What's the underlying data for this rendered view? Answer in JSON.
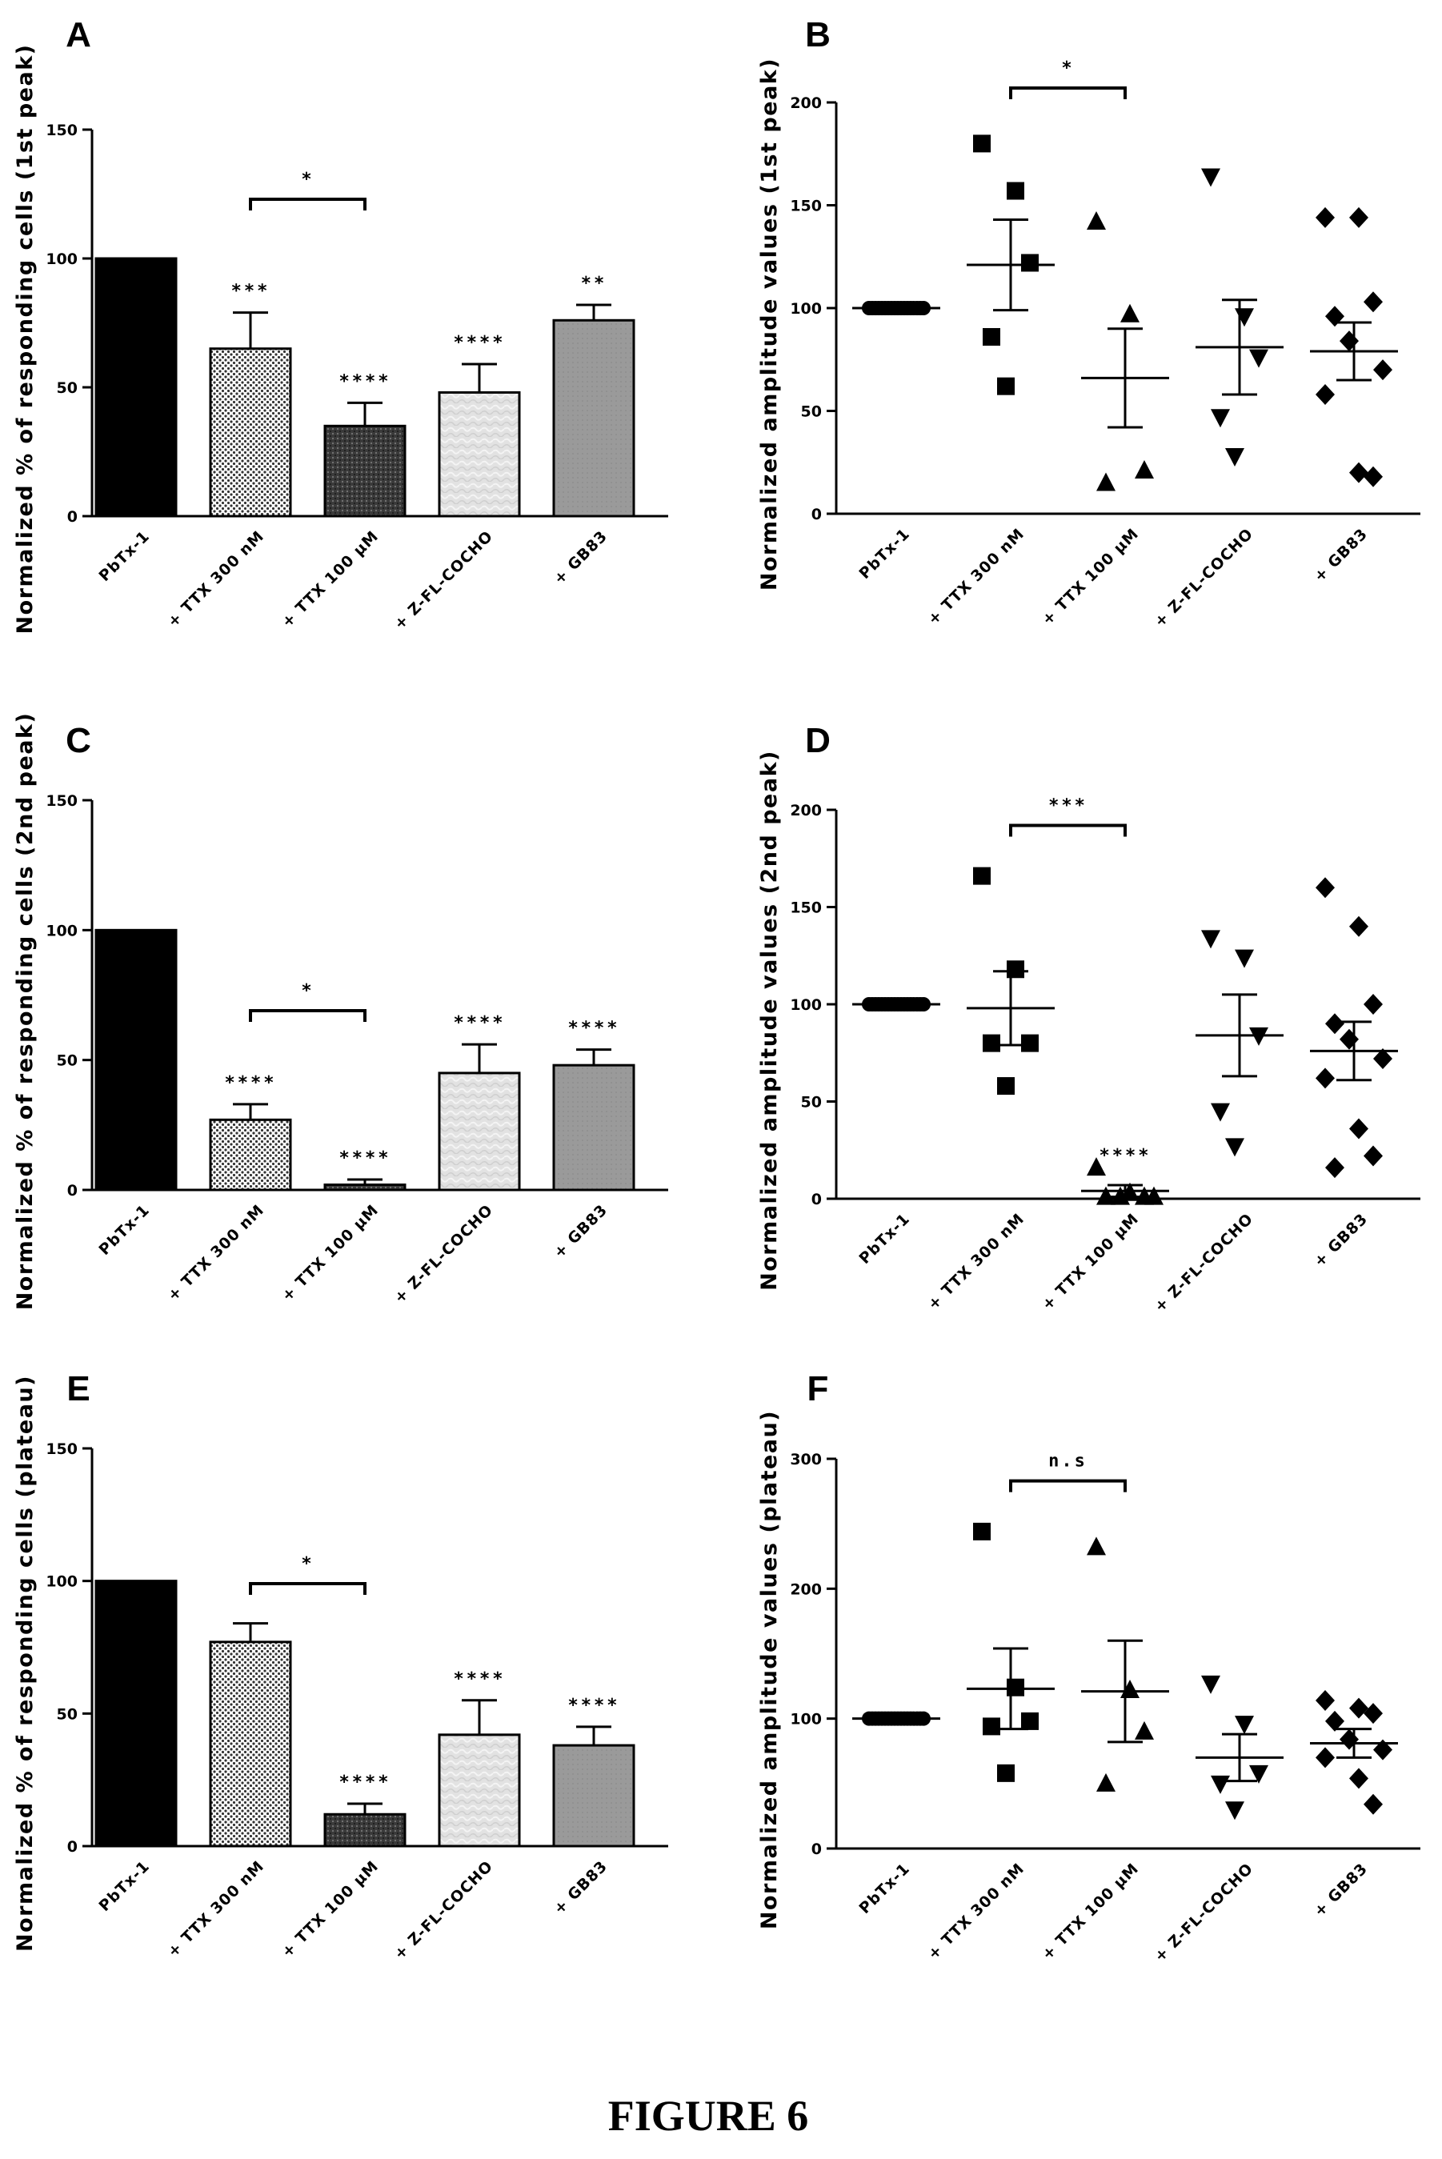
{
  "figure_title": "FIGURE 6",
  "chart_data": [
    {
      "panel": "A",
      "type": "bar",
      "ylabel": "Normalized % of responding cells (1st peak)",
      "ylim": [
        0,
        150
      ],
      "yticks": [
        0,
        50,
        100,
        150
      ],
      "categories": [
        "PbTx-1",
        "+ TTX 300 nM",
        "+ TTX 100 µM",
        "+ Z-FL-COCHO",
        "+ GB83"
      ],
      "values": [
        100,
        65,
        35,
        48,
        76
      ],
      "error": [
        0,
        14,
        9,
        11,
        6
      ],
      "significance": [
        "",
        "***",
        "****",
        "****",
        "**"
      ],
      "fills": [
        "solid",
        "dots",
        "dark",
        "light",
        "grey"
      ],
      "comparisons": [
        {
          "from": 1,
          "to": 2,
          "label": "*",
          "y": 123
        }
      ]
    },
    {
      "panel": "B",
      "type": "scatter",
      "ylabel": "Normalized amplitude values (1st peak)",
      "ylim": [
        0,
        200
      ],
      "yticks": [
        0,
        50,
        100,
        150,
        200
      ],
      "categories": [
        "PbTx-1",
        "+ TTX 300 nM",
        "+ TTX 100 µM",
        "+ Z-FL-COCHO",
        "+ GB83"
      ],
      "markers": [
        "circle",
        "square",
        "triangle",
        "triangle-down",
        "diamond"
      ],
      "points": [
        [
          100,
          100,
          100,
          100,
          100,
          100,
          100,
          100,
          100,
          100,
          100,
          100,
          100,
          100,
          100,
          100,
          100,
          100
        ],
        [
          180,
          157,
          122,
          86,
          62
        ],
        [
          142,
          97,
          21,
          15
        ],
        [
          164,
          96,
          76,
          47,
          28
        ],
        [
          144,
          144,
          103,
          96,
          84,
          70,
          58,
          20,
          18
        ]
      ],
      "mean": [
        100,
        121,
        66,
        81,
        79
      ],
      "sem": [
        0,
        22,
        24,
        23,
        14
      ],
      "significance": [
        "",
        "",
        "",
        "",
        ""
      ],
      "comparisons": [
        {
          "from": 1,
          "to": 2,
          "label": "*",
          "y": 207
        }
      ]
    },
    {
      "panel": "C",
      "type": "bar",
      "ylabel": "Normalized % of responding cells (2nd peak)",
      "ylim": [
        0,
        150
      ],
      "yticks": [
        0,
        50,
        100,
        150
      ],
      "categories": [
        "PbTx-1",
        "+ TTX 300 nM",
        "+ TTX 100 µM",
        "+ Z-FL-COCHO",
        "+ GB83"
      ],
      "values": [
        100,
        27,
        2,
        45,
        48
      ],
      "error": [
        0,
        6,
        2,
        11,
        6
      ],
      "significance": [
        "",
        "****",
        "****",
        "****",
        "****"
      ],
      "fills": [
        "solid",
        "dots",
        "dark",
        "light",
        "grey"
      ],
      "comparisons": [
        {
          "from": 1,
          "to": 2,
          "label": "*",
          "y": 69
        }
      ]
    },
    {
      "panel": "D",
      "type": "scatter",
      "ylabel": "Normalized amplitude values (2nd peak)",
      "ylim": [
        0,
        200
      ],
      "yticks": [
        0,
        50,
        100,
        150,
        200
      ],
      "categories": [
        "PbTx-1",
        "+ TTX 300 nM",
        "+ TTX 100 µM",
        "+ Z-FL-COCHO",
        "+ GB83"
      ],
      "markers": [
        "circle",
        "square",
        "triangle",
        "triangle-down",
        "diamond"
      ],
      "points": [
        [
          100,
          100,
          100,
          100,
          100,
          100,
          100,
          100,
          100,
          100,
          100,
          100,
          100,
          100,
          100,
          100,
          100,
          100
        ],
        [
          166,
          118,
          80,
          80,
          58
        ],
        [
          16,
          3,
          1,
          1,
          1,
          1
        ],
        [
          134,
          124,
          84,
          45,
          27
        ],
        [
          160,
          140,
          100,
          90,
          82,
          72,
          62,
          36,
          22,
          16
        ]
      ],
      "mean": [
        100,
        98,
        4,
        84,
        76
      ],
      "sem": [
        0,
        19,
        3,
        21,
        15
      ],
      "significance": [
        "",
        "",
        "****",
        "",
        ""
      ],
      "comparisons": [
        {
          "from": 1,
          "to": 2,
          "label": "***",
          "y": 192
        }
      ]
    },
    {
      "panel": "E",
      "type": "bar",
      "ylabel": "Normalized % of responding cells (plateau)",
      "ylim": [
        0,
        150
      ],
      "yticks": [
        0,
        50,
        100,
        150
      ],
      "categories": [
        "PbTx-1",
        "+ TTX 300 nM",
        "+ TTX 100 µM",
        "+ Z-FL-COCHO",
        "+ GB83"
      ],
      "values": [
        100,
        77,
        12,
        42,
        38
      ],
      "error": [
        0,
        7,
        4,
        13,
        7
      ],
      "significance": [
        "",
        "",
        "****",
        "****",
        "****"
      ],
      "fills": [
        "solid",
        "dots",
        "dark",
        "light",
        "grey"
      ],
      "comparisons": [
        {
          "from": 1,
          "to": 2,
          "label": "*",
          "y": 99
        }
      ]
    },
    {
      "panel": "F",
      "type": "scatter",
      "ylabel": "Normalized amplitude values (plateau)",
      "ylim": [
        0,
        300
      ],
      "yticks": [
        0,
        100,
        200,
        300
      ],
      "categories": [
        "PbTx-1",
        "+ TTX 300 nM",
        "+ TTX 100 µM",
        "+ Z-FL-COCHO",
        "+ GB83"
      ],
      "markers": [
        "circle",
        "square",
        "triangle",
        "triangle-down",
        "diamond"
      ],
      "points": [
        [
          100,
          100,
          100,
          100,
          100,
          100,
          100,
          100,
          100,
          100,
          100,
          100,
          100,
          100,
          100,
          100,
          100,
          100
        ],
        [
          244,
          124,
          98,
          94,
          58
        ],
        [
          232,
          122,
          90,
          50
        ],
        [
          127,
          96,
          58,
          50,
          30
        ],
        [
          114,
          108,
          104,
          98,
          84,
          76,
          70,
          54,
          34
        ]
      ],
      "mean": [
        100,
        123,
        121,
        70,
        81
      ],
      "sem": [
        0,
        31,
        39,
        18,
        11
      ],
      "significance": [
        "",
        "",
        "",
        "",
        ""
      ],
      "comparisons": [
        {
          "from": 1,
          "to": 2,
          "label": "n.s",
          "y": 283
        }
      ]
    }
  ]
}
